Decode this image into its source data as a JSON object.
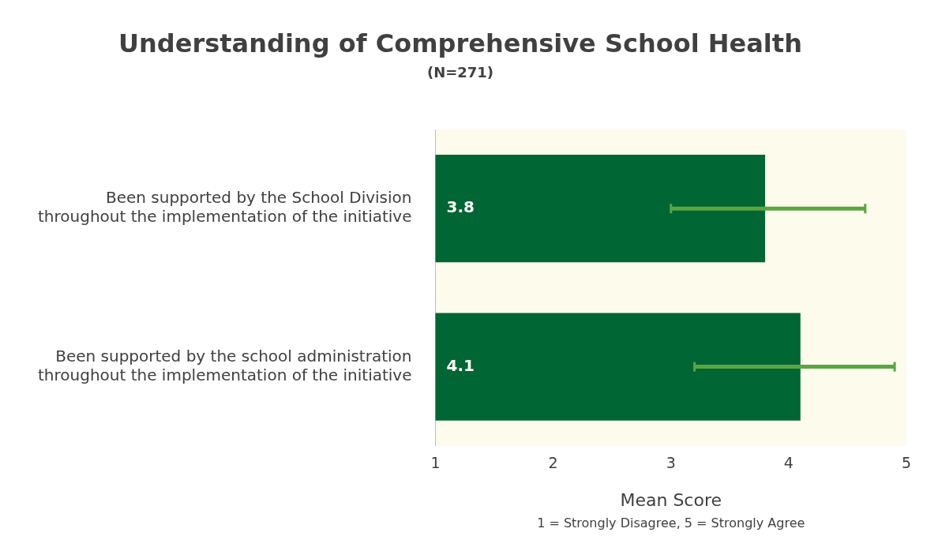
{
  "chart_data": {
    "type": "bar",
    "orientation": "horizontal",
    "title": "Understanding of Comprehensive School Health",
    "subtitle": "(N=271)",
    "categories": [
      "Been supported by the School Division throughout the implementation of the initiative",
      "Been supported by the school administration throughout the implementation of the initiative"
    ],
    "values": [
      3.8,
      4.1
    ],
    "color": "#006633",
    "errors": [
      [
        3.0,
        4.65
      ],
      [
        3.2,
        4.9
      ]
    ],
    "data_labels": true,
    "xlim": [
      1,
      5
    ],
    "xticks": [
      1,
      2,
      3,
      4,
      5
    ],
    "xlabel": "Mean Score",
    "annotations": [
      "1 = Strongly Disagree, 5 = Strongly Agree"
    ],
    "grid": false,
    "legend": false
  }
}
